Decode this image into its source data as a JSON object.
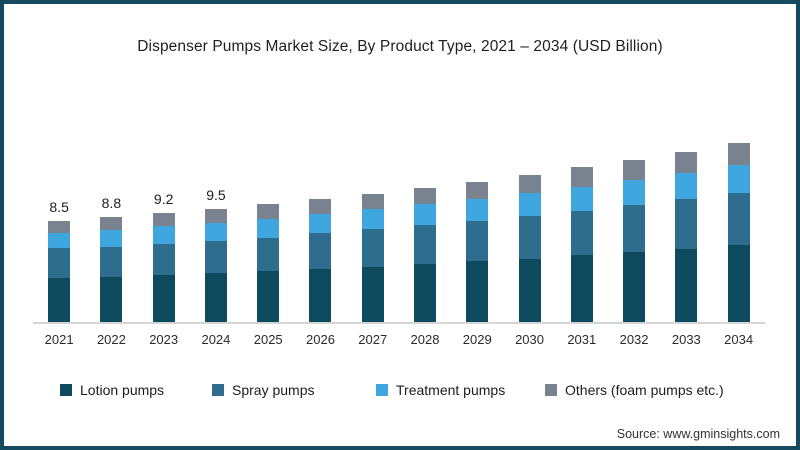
{
  "title": "Dispenser Pumps Market Size, By Product Type, 2021 – 2034 (USD Billion)",
  "source": "Source: www.gminsights.com",
  "frame": {
    "border_color": "#15495e",
    "background": "#ffffff",
    "axis_line_color": "#d5d5d5"
  },
  "legend": {
    "items": [
      {
        "label": "Lotion pumps",
        "color": "#0d4a5e"
      },
      {
        "label": "Spray pumps",
        "color": "#2e6d8d"
      },
      {
        "label": "Treatment pumps",
        "color": "#3fa6df"
      },
      {
        "label": "Others (foam pumps etc.)",
        "color": "#79828f"
      }
    ]
  },
  "chart_data": {
    "type": "bar",
    "stacked": true,
    "title": "Dispenser Pumps Market Size, By Product Type, 2021 – 2034 (USD Billion)",
    "xlabel": "",
    "ylabel": "USD Billion",
    "ylim": [
      0,
      16
    ],
    "grid": false,
    "legend_position": "bottom",
    "categories": [
      "2021",
      "2022",
      "2023",
      "2024",
      "2025",
      "2026",
      "2027",
      "2028",
      "2029",
      "2030",
      "2031",
      "2032",
      "2033",
      "2034"
    ],
    "series": [
      {
        "name": "Lotion pumps",
        "color": "#0d4a5e",
        "values": [
          3.7,
          3.8,
          3.95,
          4.1,
          4.25,
          4.45,
          4.65,
          4.85,
          5.1,
          5.3,
          5.6,
          5.85,
          6.15,
          6.45
        ]
      },
      {
        "name": "Spray pumps",
        "color": "#2e6d8d",
        "values": [
          2.5,
          2.55,
          2.65,
          2.75,
          2.85,
          3.0,
          3.15,
          3.3,
          3.4,
          3.6,
          3.75,
          3.95,
          4.15,
          4.35
        ]
      },
      {
        "name": "Treatment pumps",
        "color": "#3fa6df",
        "values": [
          1.3,
          1.35,
          1.45,
          1.5,
          1.55,
          1.6,
          1.7,
          1.75,
          1.85,
          1.95,
          2.0,
          2.1,
          2.2,
          2.35
        ]
      },
      {
        "name": "Others (foam pumps etc.)",
        "color": "#79828f",
        "values": [
          1.0,
          1.1,
          1.15,
          1.15,
          1.25,
          1.25,
          1.3,
          1.4,
          1.45,
          1.55,
          1.65,
          1.7,
          1.8,
          1.85
        ]
      }
    ],
    "totals": [
      8.5,
      8.8,
      9.2,
      9.5,
      9.9,
      10.3,
      10.8,
      11.3,
      11.8,
      12.4,
      13.0,
      13.6,
      14.3,
      15.0
    ],
    "shown_total_labels": [
      "8.5",
      "8.8",
      "9.2",
      "9.5",
      "",
      "",
      "",
      "",
      "",
      "",
      "",
      "",
      "",
      ""
    ]
  }
}
